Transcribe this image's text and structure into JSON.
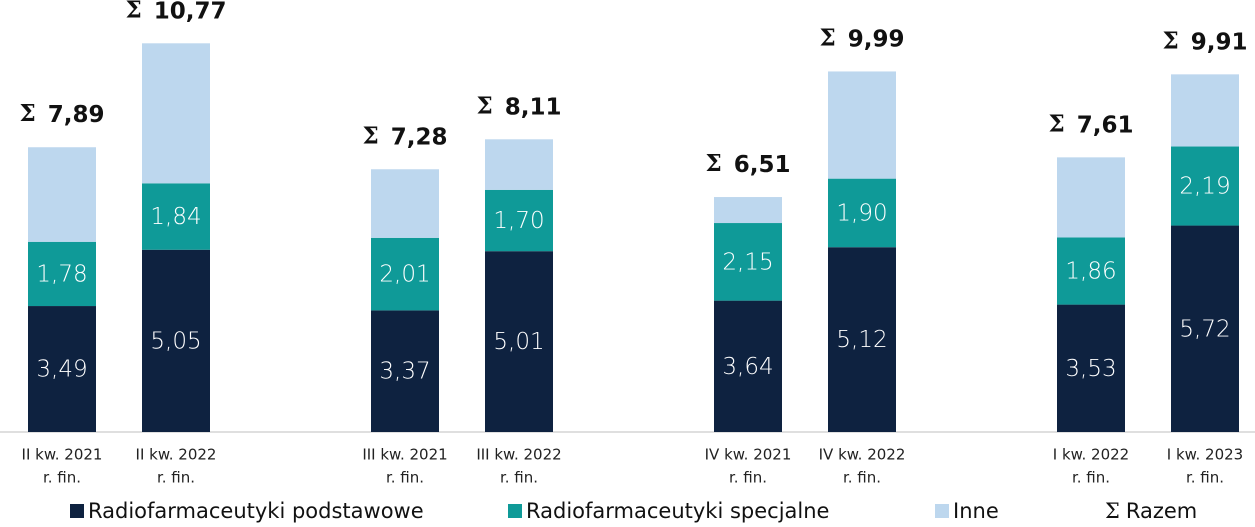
{
  "chart_data": {
    "type": "stacked_bar",
    "categories": [
      [
        "II kw. 2021",
        "r. fin."
      ],
      [
        "II kw. 2022",
        "r. fin."
      ],
      [
        "III kw. 2021",
        "r. fin."
      ],
      [
        "III kw. 2022",
        "r. fin."
      ],
      [
        "IV kw. 2021",
        "r. fin."
      ],
      [
        "IV kw. 2022",
        "r. fin."
      ],
      [
        "I kw. 2022",
        "r. fin."
      ],
      [
        "I kw. 2023",
        "r. fin."
      ]
    ],
    "series": [
      {
        "name": "Radiofarmaceutyki podstawowe",
        "color": "#0e2240",
        "label_color": "#ffffff",
        "values": [
          3.49,
          5.05,
          3.37,
          5.01,
          3.64,
          5.12,
          3.53,
          5.72
        ],
        "value_labels": [
          "3,49",
          "5,05",
          "3,37",
          "5,01",
          "3,64",
          "5,12",
          "3,53",
          "5,72"
        ]
      },
      {
        "name": "Radiofarmaceutyki specjalne",
        "color": "#0f9a98",
        "label_color": "#ffffff",
        "values": [
          1.78,
          1.84,
          2.01,
          1.7,
          2.15,
          1.9,
          1.86,
          2.19
        ],
        "value_labels": [
          "1,78",
          "1,84",
          "2,01",
          "1,70",
          "2,15",
          "1,90",
          "1,86",
          "2,19"
        ]
      },
      {
        "name": "Inne",
        "color": "#bdd7ee",
        "values": [
          2.62,
          3.88,
          1.9,
          1.4,
          0.72,
          2.97,
          2.22,
          2.0
        ]
      }
    ],
    "totals": {
      "name": "Razem",
      "symbol": "Σ",
      "values": [
        7.89,
        10.77,
        7.28,
        8.11,
        6.51,
        9.99,
        7.61,
        9.91
      ],
      "value_labels": [
        "7,89",
        "10,77",
        "7,28",
        "8,11",
        "6,51",
        "9,99",
        "7,61",
        "9,91"
      ]
    },
    "ylim": [
      0,
      11
    ]
  }
}
